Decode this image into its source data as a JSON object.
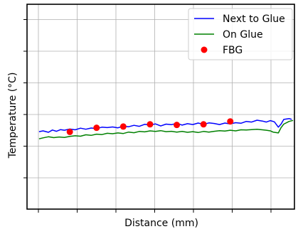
{
  "chart_data": {
    "type": "line",
    "title": "",
    "xlabel": "Distance (mm)",
    "ylabel": "Temperature (°C)",
    "xlim": [
      0,
      100
    ],
    "ylim": [
      0,
      100
    ],
    "grid": true,
    "legend_position": "top-right",
    "x_tick_count": 8,
    "y_tick_count": 6,
    "series": [
      {
        "name": "Next to Glue",
        "kind": "line",
        "color": "#0000ff",
        "x": [
          4.5,
          6,
          8,
          9.5,
          11,
          12.5,
          14,
          16,
          18,
          20,
          22,
          24,
          26,
          28,
          30,
          32,
          34,
          36,
          38,
          40,
          42,
          44,
          46,
          48,
          50,
          52,
          54,
          56,
          58,
          60,
          62,
          64,
          66,
          68,
          70,
          72,
          74,
          76,
          78,
          80,
          82,
          84,
          86,
          88,
          89.5,
          91,
          92.5,
          94,
          95,
          96,
          98,
          99
        ],
        "y": [
          37.8,
          38.2,
          37.5,
          38.6,
          38.0,
          38.8,
          38.5,
          39.1,
          38.7,
          39.5,
          39.0,
          39.6,
          39.3,
          40.0,
          39.8,
          40.1,
          39.7,
          40.5,
          40.2,
          40.9,
          40.4,
          41.4,
          41.0,
          41.6,
          40.6,
          41.5,
          41.2,
          41.9,
          41.0,
          41.7,
          41.3,
          42.0,
          41.4,
          42.1,
          41.8,
          41.3,
          42.0,
          41.6,
          42.2,
          41.9,
          42.8,
          42.5,
          43.4,
          43.0,
          42.5,
          43.2,
          42.6,
          40.0,
          41.5,
          43.8,
          44.2,
          43.8
        ]
      },
      {
        "name": "On Glue",
        "kind": "line",
        "color": "#008000",
        "x": [
          4.5,
          6,
          8,
          10,
          12,
          14,
          16,
          18,
          20,
          22,
          24,
          26,
          28,
          30,
          32,
          34,
          36,
          38,
          40,
          42,
          44,
          46,
          48,
          50,
          52,
          54,
          56,
          58,
          60,
          62,
          64,
          66,
          68,
          70,
          72,
          74,
          76,
          78,
          80,
          82,
          84,
          86,
          88,
          89.5,
          91,
          92,
          94,
          95,
          96,
          98,
          99.5
        ],
        "y": [
          34.3,
          34.8,
          35.3,
          34.9,
          35.2,
          35.0,
          35.5,
          35.8,
          35.6,
          36.3,
          36.0,
          36.6,
          36.4,
          37.0,
          36.8,
          37.2,
          36.9,
          37.6,
          37.3,
          37.9,
          37.7,
          38.2,
          37.9,
          38.3,
          37.8,
          38.0,
          37.6,
          37.9,
          37.5,
          37.8,
          37.4,
          37.9,
          37.6,
          38.0,
          38.3,
          38.1,
          38.5,
          38.2,
          38.7,
          38.6,
          38.8,
          39.0,
          38.7,
          38.5,
          38.2,
          37.6,
          37.2,
          39.8,
          41.5,
          42.8,
          43.3
        ]
      },
      {
        "name": "FBG",
        "kind": "scatter",
        "color": "#ff0000",
        "x": [
          16,
          26,
          36,
          46,
          56,
          66,
          76
        ],
        "y": [
          37.7,
          39.7,
          40.3,
          41.4,
          41.1,
          41.4,
          42.8
        ]
      }
    ]
  }
}
